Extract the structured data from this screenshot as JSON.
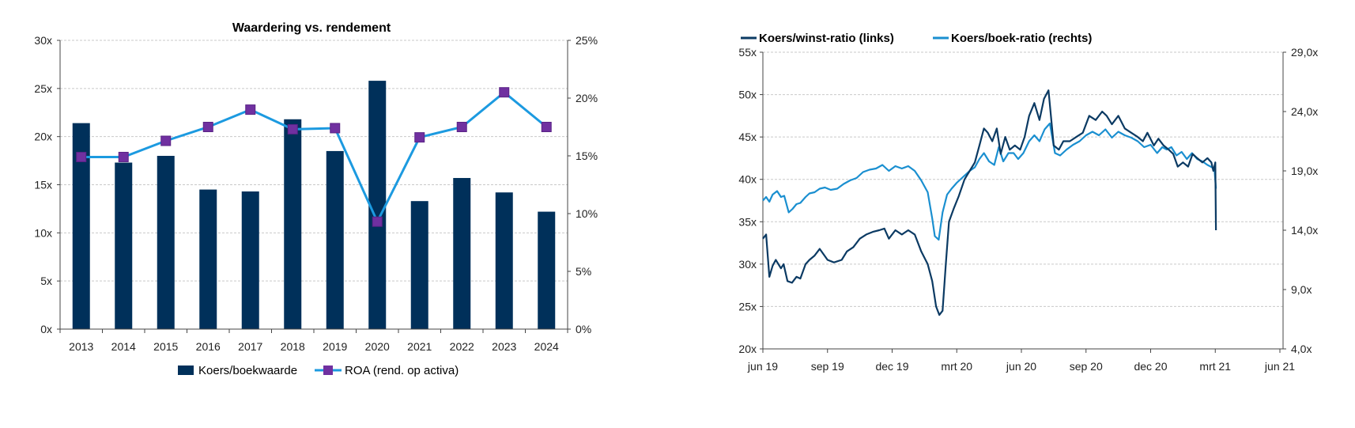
{
  "chart_data": [
    {
      "type": "bar",
      "title": "Waardering vs. rendement",
      "categories": [
        "2013",
        "2014",
        "2015",
        "2016",
        "2017",
        "2018",
        "2019",
        "2020",
        "2021",
        "2022",
        "2023",
        "2024"
      ],
      "series": [
        {
          "name": "Koers/boekwaarde",
          "type": "bar",
          "axis": "left",
          "color": "#00305a",
          "values": [
            21.4,
            17.3,
            18.0,
            14.5,
            14.3,
            21.8,
            18.5,
            25.8,
            13.3,
            15.7,
            14.2,
            12.2
          ]
        },
        {
          "name": "ROA (rend. op activa)",
          "type": "line",
          "axis": "right",
          "color": "#1c9ae0",
          "marker_color": "#7030a0",
          "values": [
            14.9,
            14.9,
            16.3,
            17.5,
            19.0,
            17.3,
            17.4,
            9.3,
            16.6,
            17.5,
            20.5,
            17.5
          ]
        }
      ],
      "ylim_left": [
        0,
        30
      ],
      "ylim_right": [
        0,
        25
      ],
      "yticks_left": [
        "0x",
        "5x",
        "10x",
        "15x",
        "20x",
        "25x",
        "30x"
      ],
      "yticks_right": [
        "0%",
        "5%",
        "10%",
        "15%",
        "20%",
        "25%"
      ],
      "grid": true,
      "legend_position": "bottom"
    },
    {
      "type": "line",
      "legend": [
        "Koers/winst-ratio (links)",
        "Koers/boek-ratio (rechts)"
      ],
      "legend_position": "top",
      "grid": true,
      "x_ticks": [
        "jun 19",
        "sep 19",
        "dec 19",
        "mrt 20",
        "jun 20",
        "sep 20",
        "dec 20",
        "mrt 21",
        "jun 21"
      ],
      "ylim_left": [
        20,
        55
      ],
      "ylim_right": [
        4,
        29
      ],
      "yticks_left": [
        "20x",
        "25x",
        "30x",
        "35x",
        "40x",
        "45x",
        "50x",
        "55x"
      ],
      "yticks_right": [
        "4,0x",
        "9,0x",
        "14,0x",
        "19,0x",
        "24,0x",
        "29,0x"
      ],
      "series": [
        {
          "name": "Koers/winst-ratio (links)",
          "axis": "left",
          "color": "#0b3a63",
          "points": [
            [
              0.0,
              33.0
            ],
            [
              0.05,
              33.5
            ],
            [
              0.1,
              28.5
            ],
            [
              0.15,
              29.8
            ],
            [
              0.2,
              30.5
            ],
            [
              0.28,
              29.5
            ],
            [
              0.32,
              30.0
            ],
            [
              0.38,
              28.0
            ],
            [
              0.45,
              27.8
            ],
            [
              0.52,
              28.5
            ],
            [
              0.58,
              28.3
            ],
            [
              0.66,
              30.0
            ],
            [
              0.72,
              30.5
            ],
            [
              0.8,
              31.0
            ],
            [
              0.88,
              31.8
            ],
            [
              1.0,
              30.5
            ],
            [
              1.1,
              30.2
            ],
            [
              1.22,
              30.5
            ],
            [
              1.3,
              31.5
            ],
            [
              1.4,
              32.0
            ],
            [
              1.5,
              33.0
            ],
            [
              1.6,
              33.5
            ],
            [
              1.7,
              33.8
            ],
            [
              1.8,
              34.0
            ],
            [
              1.88,
              34.2
            ],
            [
              1.95,
              33.0
            ],
            [
              2.05,
              34.0
            ],
            [
              2.15,
              33.5
            ],
            [
              2.25,
              34.0
            ],
            [
              2.35,
              33.5
            ],
            [
              2.45,
              31.5
            ],
            [
              2.55,
              30.0
            ],
            [
              2.62,
              28.0
            ],
            [
              2.68,
              25.0
            ],
            [
              2.73,
              24.0
            ],
            [
              2.78,
              24.5
            ],
            [
              2.83,
              30.0
            ],
            [
              2.88,
              35.0
            ],
            [
              2.95,
              36.5
            ],
            [
              3.03,
              38.0
            ],
            [
              3.12,
              40.0
            ],
            [
              3.2,
              41.0
            ],
            [
              3.28,
              42.0
            ],
            [
              3.35,
              44.0
            ],
            [
              3.42,
              46.0
            ],
            [
              3.48,
              45.5
            ],
            [
              3.55,
              44.5
            ],
            [
              3.62,
              46.0
            ],
            [
              3.68,
              43.0
            ],
            [
              3.75,
              45.0
            ],
            [
              3.82,
              43.5
            ],
            [
              3.9,
              44.0
            ],
            [
              3.98,
              43.5
            ],
            [
              4.05,
              45.0
            ],
            [
              4.12,
              47.5
            ],
            [
              4.2,
              49.0
            ],
            [
              4.28,
              47.0
            ],
            [
              4.35,
              49.5
            ],
            [
              4.42,
              50.5
            ],
            [
              4.5,
              44.0
            ],
            [
              4.58,
              43.5
            ],
            [
              4.65,
              44.5
            ],
            [
              4.75,
              44.5
            ],
            [
              4.85,
              45.0
            ],
            [
              4.95,
              45.5
            ],
            [
              5.05,
              47.5
            ],
            [
              5.15,
              47.0
            ],
            [
              5.25,
              48.0
            ],
            [
              5.32,
              47.5
            ],
            [
              5.4,
              46.5
            ],
            [
              5.5,
              47.5
            ],
            [
              5.6,
              46.0
            ],
            [
              5.7,
              45.5
            ],
            [
              5.8,
              45.0
            ],
            [
              5.88,
              44.5
            ],
            [
              5.95,
              45.5
            ],
            [
              6.05,
              44.0
            ],
            [
              6.12,
              44.8
            ],
            [
              6.2,
              44.0
            ],
            [
              6.28,
              43.5
            ],
            [
              6.35,
              43.0
            ],
            [
              6.42,
              41.5
            ],
            [
              6.5,
              42.0
            ],
            [
              6.58,
              41.5
            ],
            [
              6.65,
              43.0
            ],
            [
              6.72,
              42.5
            ],
            [
              6.8,
              42.0
            ],
            [
              6.88,
              42.5
            ],
            [
              6.94,
              42.0
            ],
            [
              6.97,
              41.0
            ],
            [
              7.0,
              42.0
            ],
            [
              7.01,
              34.0
            ]
          ]
        },
        {
          "name": "Koers/boek-ratio (rechts)",
          "axis": "right",
          "color": "#1a8fd0",
          "points": [
            [
              0.0,
              16.5
            ],
            [
              0.05,
              16.8
            ],
            [
              0.1,
              16.4
            ],
            [
              0.15,
              17.0
            ],
            [
              0.22,
              17.3
            ],
            [
              0.28,
              16.8
            ],
            [
              0.33,
              16.9
            ],
            [
              0.4,
              15.5
            ],
            [
              0.46,
              15.8
            ],
            [
              0.52,
              16.2
            ],
            [
              0.58,
              16.3
            ],
            [
              0.66,
              16.8
            ],
            [
              0.72,
              17.1
            ],
            [
              0.8,
              17.2
            ],
            [
              0.88,
              17.5
            ],
            [
              0.96,
              17.6
            ],
            [
              1.05,
              17.4
            ],
            [
              1.15,
              17.5
            ],
            [
              1.25,
              17.9
            ],
            [
              1.35,
              18.2
            ],
            [
              1.45,
              18.4
            ],
            [
              1.55,
              18.9
            ],
            [
              1.65,
              19.1
            ],
            [
              1.75,
              19.2
            ],
            [
              1.85,
              19.5
            ],
            [
              1.95,
              19.0
            ],
            [
              2.05,
              19.4
            ],
            [
              2.15,
              19.2
            ],
            [
              2.25,
              19.4
            ],
            [
              2.35,
              19.0
            ],
            [
              2.45,
              18.2
            ],
            [
              2.55,
              17.2
            ],
            [
              2.62,
              15.0
            ],
            [
              2.66,
              13.5
            ],
            [
              2.72,
              13.2
            ],
            [
              2.78,
              15.5
            ],
            [
              2.85,
              17.0
            ],
            [
              2.92,
              17.5
            ],
            [
              3.0,
              18.0
            ],
            [
              3.1,
              18.5
            ],
            [
              3.2,
              19.0
            ],
            [
              3.28,
              19.3
            ],
            [
              3.35,
              20.0
            ],
            [
              3.42,
              20.5
            ],
            [
              3.5,
              19.8
            ],
            [
              3.58,
              19.5
            ],
            [
              3.65,
              21.0
            ],
            [
              3.72,
              19.8
            ],
            [
              3.8,
              20.5
            ],
            [
              3.88,
              20.5
            ],
            [
              3.95,
              20.0
            ],
            [
              4.03,
              20.5
            ],
            [
              4.12,
              21.5
            ],
            [
              4.2,
              22.0
            ],
            [
              4.28,
              21.5
            ],
            [
              4.36,
              22.5
            ],
            [
              4.44,
              23.0
            ],
            [
              4.52,
              20.5
            ],
            [
              4.6,
              20.3
            ],
            [
              4.7,
              20.8
            ],
            [
              4.8,
              21.2
            ],
            [
              4.9,
              21.5
            ],
            [
              5.0,
              22.0
            ],
            [
              5.1,
              22.3
            ],
            [
              5.2,
              22.0
            ],
            [
              5.3,
              22.5
            ],
            [
              5.4,
              21.8
            ],
            [
              5.5,
              22.3
            ],
            [
              5.6,
              22.0
            ],
            [
              5.7,
              21.8
            ],
            [
              5.8,
              21.5
            ],
            [
              5.9,
              21.0
            ],
            [
              6.0,
              21.2
            ],
            [
              6.1,
              20.5
            ],
            [
              6.18,
              21.0
            ],
            [
              6.25,
              20.8
            ],
            [
              6.32,
              21.0
            ],
            [
              6.4,
              20.3
            ],
            [
              6.48,
              20.6
            ],
            [
              6.56,
              20.0
            ],
            [
              6.64,
              20.5
            ],
            [
              6.72,
              20.0
            ],
            [
              6.8,
              19.8
            ],
            [
              6.88,
              19.5
            ],
            [
              6.95,
              19.3
            ],
            [
              6.99,
              19.0
            ],
            [
              7.01,
              17.5
            ]
          ]
        }
      ]
    }
  ]
}
